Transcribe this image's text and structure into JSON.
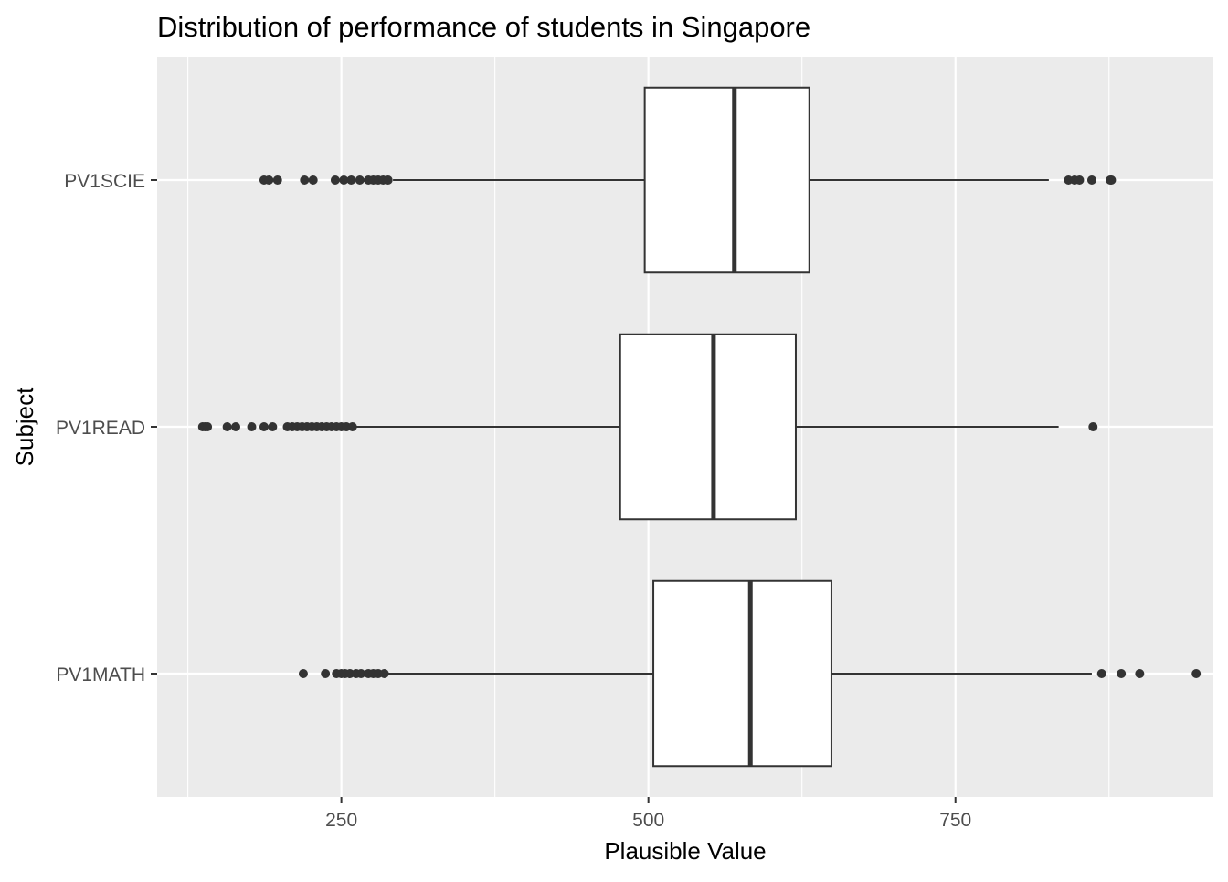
{
  "chart_data": {
    "type": "boxplot",
    "orientation": "horizontal",
    "title": "Distribution of performance of students in Singapore",
    "xlabel": "Plausible Value",
    "ylabel": "Subject",
    "xlim": [
      100,
      960
    ],
    "x_ticks": [
      250,
      500,
      750
    ],
    "x_minor_ticks": [
      125,
      375,
      625,
      875
    ],
    "grid": true,
    "categories": [
      "PV1MATH",
      "PV1READ",
      "PV1SCIE"
    ],
    "boxes": [
      {
        "name": "PV1MATH",
        "whisker_low": 288,
        "q1": 504,
        "median": 583,
        "q3": 649,
        "whisker_high": 861,
        "outliers": [
          219,
          237,
          246,
          250,
          253,
          257,
          262,
          266,
          272,
          276,
          280,
          285,
          869,
          885,
          900,
          946
        ]
      },
      {
        "name": "PV1READ",
        "whisker_low": 262,
        "q1": 477,
        "median": 553,
        "q3": 620,
        "whisker_high": 834,
        "outliers": [
          137,
          139,
          141,
          157,
          164,
          177,
          187,
          194,
          206,
          210,
          214,
          218,
          222,
          226,
          230,
          234,
          238,
          242,
          246,
          250,
          254,
          259,
          862
        ]
      },
      {
        "name": "PV1SCIE",
        "whisker_low": 292,
        "q1": 497,
        "median": 570,
        "q3": 631,
        "whisker_high": 826,
        "outliers": [
          187,
          191,
          198,
          220,
          227,
          245,
          252,
          258,
          265,
          272,
          276,
          280,
          284,
          288,
          842,
          847,
          851,
          861,
          876,
          877
        ]
      }
    ]
  }
}
